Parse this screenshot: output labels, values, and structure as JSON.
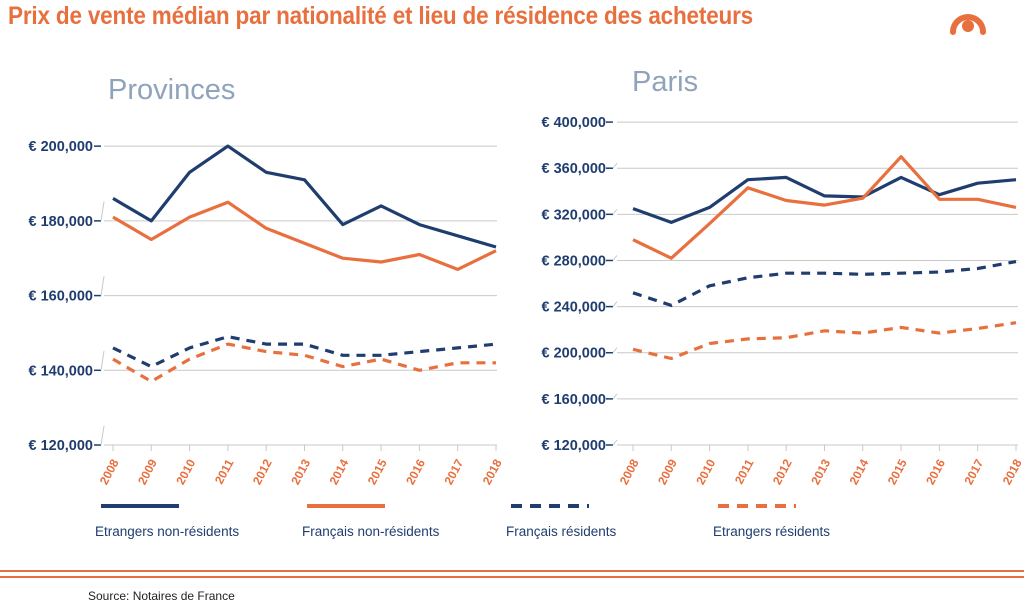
{
  "title": "Prix de vente médian par nationalité et lieu de résidence des acheteurs",
  "source": "Source: Notaires de France",
  "colors": {
    "navy": "#1f3d6e",
    "orange": "#e8703f",
    "grid": "#c9c9c9",
    "panel_title": "#8fa3bd"
  },
  "chart_data": [
    {
      "type": "line",
      "title": "Provinces",
      "categories": [
        "2008",
        "2009",
        "2010",
        "2011",
        "2012",
        "2013",
        "2014",
        "2015",
        "2016",
        "2017",
        "2018"
      ],
      "yticks": [
        120000,
        140000,
        160000,
        180000,
        200000
      ],
      "ytick_labels": [
        "€ 120,000",
        "€ 140,000",
        "€ 160,000",
        "€ 180,000",
        "€ 200,000"
      ],
      "ylim": [
        120000,
        207000
      ],
      "series": [
        {
          "name": "Etrangers non-résidents",
          "color": "#1f3d6e",
          "dashed": false,
          "values": [
            186000,
            180000,
            193000,
            200000,
            193000,
            191000,
            179000,
            184000,
            179000,
            176000,
            173000
          ]
        },
        {
          "name": "Français non-résidents",
          "color": "#e8703f",
          "dashed": false,
          "values": [
            181000,
            175000,
            181000,
            185000,
            178000,
            174000,
            170000,
            169000,
            171000,
            167000,
            172000
          ]
        },
        {
          "name": "Français résidents",
          "color": "#1f3d6e",
          "dashed": true,
          "values": [
            146000,
            141000,
            146000,
            149000,
            147000,
            147000,
            144000,
            144000,
            145000,
            146000,
            147000
          ]
        },
        {
          "name": "Etrangers résidents",
          "color": "#e8703f",
          "dashed": true,
          "values": [
            143000,
            137000,
            143000,
            147000,
            145000,
            144000,
            141000,
            143000,
            140000,
            142000,
            142000
          ]
        }
      ]
    },
    {
      "type": "line",
      "title": "Paris",
      "categories": [
        "2008",
        "2009",
        "2010",
        "2011",
        "2012",
        "2013",
        "2014",
        "2015",
        "2016",
        "2017",
        "2018"
      ],
      "yticks": [
        120000,
        160000,
        200000,
        240000,
        280000,
        320000,
        360000,
        400000
      ],
      "ytick_labels": [
        "€ 120,000",
        "€ 160,000",
        "€ 200,000",
        "€ 240,000",
        "€ 280,000",
        "€ 320,000",
        "€ 360,000",
        "€ 400,000"
      ],
      "ylim": [
        120000,
        420000
      ],
      "series": [
        {
          "name": "Etrangers non-résidents",
          "color": "#1f3d6e",
          "dashed": false,
          "values": [
            325000,
            313000,
            326000,
            350000,
            352000,
            336000,
            335000,
            352000,
            337000,
            347000,
            350000
          ]
        },
        {
          "name": "Français non-résidents",
          "color": "#e8703f",
          "dashed": false,
          "values": [
            298000,
            282000,
            312000,
            343000,
            332000,
            328000,
            334000,
            370000,
            333000,
            333000,
            326000
          ]
        },
        {
          "name": "Français résidents",
          "color": "#1f3d6e",
          "dashed": true,
          "values": [
            252000,
            241000,
            258000,
            265000,
            269000,
            269000,
            268000,
            269000,
            270000,
            273000,
            279000
          ]
        },
        {
          "name": "Etrangers résidents",
          "color": "#e8703f",
          "dashed": true,
          "values": [
            203000,
            195000,
            208000,
            212000,
            213000,
            219000,
            217000,
            222000,
            217000,
            221000,
            226000
          ]
        }
      ]
    }
  ],
  "legend": [
    {
      "label": "Etrangers non-résidents",
      "color": "#1f3d6e",
      "dashed": false
    },
    {
      "label": "Français non-résidents",
      "color": "#e8703f",
      "dashed": false
    },
    {
      "label": "Français résidents",
      "color": "#1f3d6e",
      "dashed": true
    },
    {
      "label": "Etrangers résidents",
      "color": "#e8703f",
      "dashed": true
    }
  ]
}
